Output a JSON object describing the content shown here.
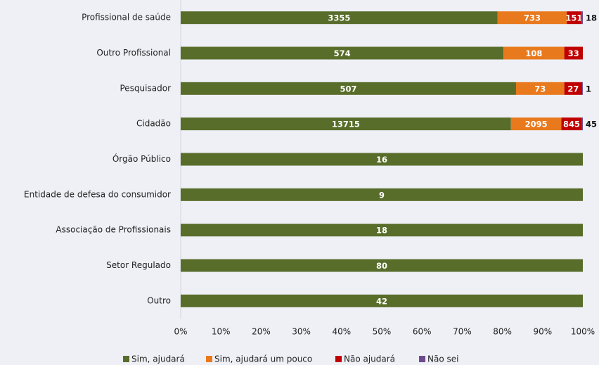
{
  "chart_data": {
    "type": "bar",
    "orientation": "horizontal",
    "stacked": "percent",
    "categories": [
      "Profissional de saúde",
      "Outro Profissional",
      "Pesquisador",
      "Cidadão",
      "Órgão Público",
      "Entidade de defesa do consumidor",
      "Associação de Profissionais",
      "Setor Regulado",
      "Outro"
    ],
    "series": [
      {
        "name": "Sim, ajudará",
        "color": "#596d2a",
        "values": [
          3355,
          574,
          507,
          13715,
          16,
          9,
          18,
          80,
          42
        ]
      },
      {
        "name": "Sim, ajudará um pouco",
        "color": "#e8791c",
        "values": [
          733,
          108,
          73,
          2095,
          null,
          null,
          null,
          null,
          null
        ]
      },
      {
        "name": "Não ajudará",
        "color": "#c00000",
        "values": [
          151,
          33,
          27,
          845,
          null,
          null,
          null,
          null,
          null
        ]
      },
      {
        "name": "Não sei",
        "color": "#6e4b8e",
        "values": [
          18,
          null,
          1,
          45,
          null,
          null,
          null,
          null,
          null
        ]
      }
    ],
    "xlim": [
      0,
      100
    ],
    "xticks": [
      {
        "value": 0,
        "label": "0%"
      },
      {
        "value": 10,
        "label": "10%"
      },
      {
        "value": 20,
        "label": "20%"
      },
      {
        "value": 30,
        "label": "30%"
      },
      {
        "value": 40,
        "label": "40%"
      },
      {
        "value": 50,
        "label": "50%"
      },
      {
        "value": 60,
        "label": "60%"
      },
      {
        "value": 70,
        "label": "70%"
      },
      {
        "value": 80,
        "label": "80%"
      },
      {
        "value": 90,
        "label": "90%"
      },
      {
        "value": 100,
        "label": "100%"
      }
    ],
    "legend": "bottom"
  }
}
